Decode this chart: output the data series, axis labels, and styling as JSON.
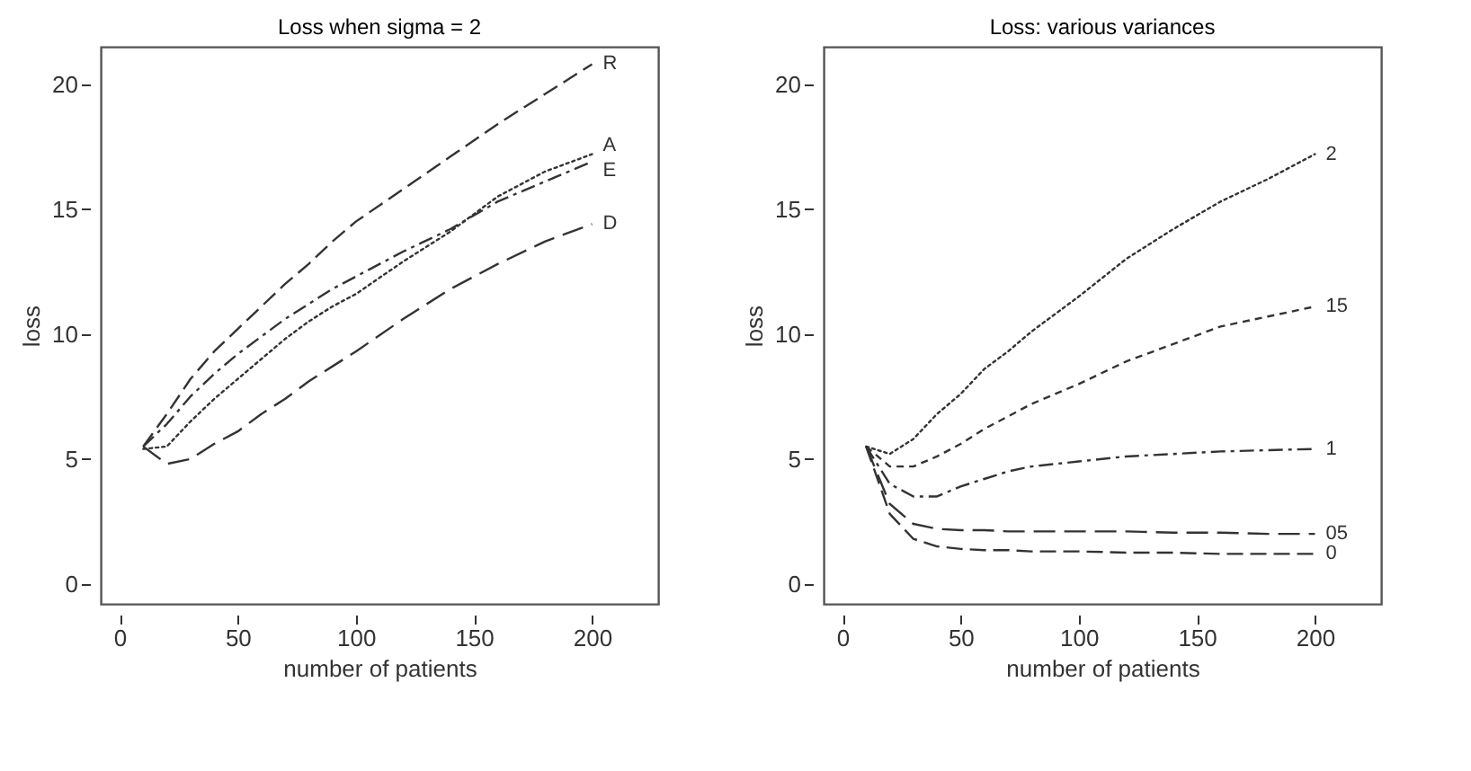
{
  "chart_data": [
    {
      "type": "line",
      "title": "Loss when sigma = 2",
      "xlabel": "number of patients",
      "ylabel": "loss",
      "x": [
        10,
        20,
        30,
        40,
        50,
        60,
        70,
        80,
        90,
        100,
        120,
        140,
        160,
        180,
        200
      ],
      "series": [
        {
          "name": "R",
          "color": "#333333",
          "line_style": "dashed",
          "values": [
            5.5,
            6.8,
            8.2,
            9.3,
            10.2,
            11.1,
            12.0,
            12.8,
            13.7,
            14.5,
            15.8,
            17.1,
            18.4,
            19.6,
            20.8
          ]
        },
        {
          "name": "A",
          "color": "#333333",
          "line_style": "dotted",
          "values": [
            5.4,
            5.5,
            6.5,
            7.4,
            8.2,
            9.0,
            9.8,
            10.5,
            11.1,
            11.6,
            12.9,
            14.1,
            15.5,
            16.5,
            17.2
          ]
        },
        {
          "name": "E",
          "color": "#333333",
          "line_style": "dashed",
          "values": [
            5.5,
            6.4,
            7.5,
            8.4,
            9.2,
            9.9,
            10.6,
            11.2,
            11.8,
            12.3,
            13.3,
            14.2,
            15.3,
            16.1,
            16.9
          ]
        },
        {
          "name": "D",
          "color": "#333333",
          "line_style": "dashed",
          "values": [
            5.5,
            4.8,
            5.0,
            5.6,
            6.1,
            6.8,
            7.4,
            8.1,
            8.7,
            9.3,
            10.6,
            11.8,
            12.8,
            13.7,
            14.4
          ]
        }
      ],
      "xlim": [
        -8,
        228
      ],
      "ylim": [
        -0.8,
        21.5
      ],
      "xticks": [
        0,
        50,
        100,
        150,
        200
      ],
      "yticks": [
        0,
        5,
        10,
        15,
        20
      ]
    },
    {
      "type": "line",
      "title": "Loss: various variances",
      "xlabel": "number of patients",
      "ylabel": "loss",
      "x": [
        10,
        20,
        30,
        40,
        50,
        60,
        70,
        80,
        90,
        100,
        120,
        140,
        160,
        180,
        200
      ],
      "series": [
        {
          "name": "2",
          "color": "#333333",
          "line_style": "dotted",
          "values": [
            5.5,
            5.2,
            5.8,
            6.8,
            7.6,
            8.6,
            9.3,
            10.1,
            10.8,
            11.5,
            13.0,
            14.2,
            15.3,
            16.2,
            17.2
          ]
        },
        {
          "name": "15",
          "color": "#333333",
          "line_style": "dashed",
          "values": [
            5.5,
            4.7,
            4.7,
            5.1,
            5.6,
            6.2,
            6.7,
            7.2,
            7.6,
            8.0,
            8.9,
            9.6,
            10.3,
            10.7,
            11.1
          ]
        },
        {
          "name": "1",
          "color": "#333333",
          "line_style": "dashed",
          "values": [
            5.5,
            4.0,
            3.5,
            3.5,
            3.9,
            4.2,
            4.5,
            4.7,
            4.8,
            4.9,
            5.1,
            5.2,
            5.3,
            5.35,
            5.4
          ]
        },
        {
          "name": "05",
          "color": "#333333",
          "line_style": "dashed",
          "values": [
            5.5,
            3.2,
            2.4,
            2.2,
            2.15,
            2.15,
            2.1,
            2.1,
            2.1,
            2.1,
            2.1,
            2.05,
            2.05,
            2.0,
            2.0
          ]
        },
        {
          "name": "0",
          "color": "#333333",
          "line_style": "dashed",
          "values": [
            5.5,
            2.8,
            1.8,
            1.5,
            1.4,
            1.35,
            1.35,
            1.3,
            1.3,
            1.3,
            1.25,
            1.25,
            1.2,
            1.2,
            1.2
          ]
        }
      ],
      "xlim": [
        -8,
        228
      ],
      "ylim": [
        -0.8,
        21.5
      ],
      "xticks": [
        0,
        50,
        100,
        150,
        200
      ],
      "yticks": [
        0,
        5,
        10,
        15,
        20
      ]
    }
  ]
}
